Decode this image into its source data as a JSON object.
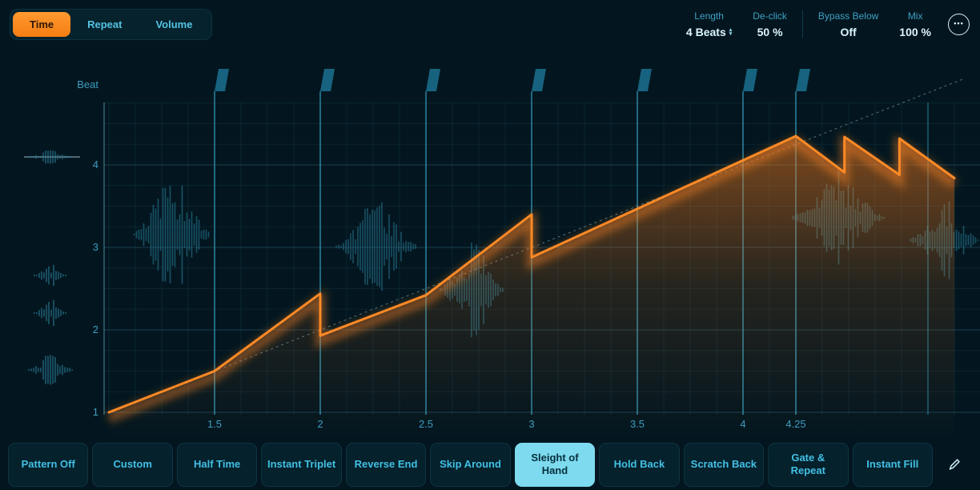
{
  "tabs": {
    "items": [
      {
        "label": "Time",
        "selected": true
      },
      {
        "label": "Repeat",
        "selected": false
      },
      {
        "label": "Volume",
        "selected": false
      }
    ]
  },
  "header": {
    "params": [
      {
        "id": "length",
        "label": "Length",
        "value": "4 Beats",
        "stepper": true,
        "divider_after": false
      },
      {
        "id": "de-click",
        "label": "De-click",
        "value": "50 %",
        "stepper": false,
        "divider_after": true
      },
      {
        "id": "bypass-below",
        "label": "Bypass Below",
        "value": "Off",
        "stepper": false,
        "divider_after": false
      },
      {
        "id": "mix",
        "label": "Mix",
        "value": "100 %",
        "stepper": false,
        "divider_after": false
      }
    ],
    "more_icon": "•••"
  },
  "chart_data": {
    "type": "line",
    "title": "",
    "xlabel": "",
    "ylabel": "Beat",
    "xlim": [
      1,
      5.12
    ],
    "ylim": [
      1,
      4.78
    ],
    "grid": true,
    "x_ticks": [
      {
        "v": 1.5,
        "label": "1.5"
      },
      {
        "v": 2,
        "label": "2"
      },
      {
        "v": 2.5,
        "label": "2.5"
      },
      {
        "v": 3,
        "label": "3"
      },
      {
        "v": 3.5,
        "label": "3.5"
      },
      {
        "v": 4,
        "label": "4"
      },
      {
        "v": 4.25,
        "label": "4.25"
      }
    ],
    "y_ticks": [
      {
        "v": 1,
        "label": "1"
      },
      {
        "v": 2,
        "label": "2"
      },
      {
        "v": 3,
        "label": "3"
      },
      {
        "v": 4,
        "label": "4"
      }
    ],
    "slice_markers": [
      1.5,
      2,
      2.5,
      3,
      3.5,
      4,
      4.25
    ],
    "end_marker": 4.875,
    "identity_line": {
      "x": [
        1,
        5.05
      ],
      "y": [
        1,
        5.05
      ],
      "style": "dashed"
    },
    "series": [
      {
        "name": "time-curve",
        "color": "#ff8a26",
        "points": [
          [
            1,
            1
          ],
          [
            1.5,
            1.5
          ],
          [
            2,
            2.44
          ],
          [
            2,
            1.93
          ],
          [
            2.5,
            2.42
          ],
          [
            3,
            3.4
          ],
          [
            3,
            2.88
          ],
          [
            4.25,
            4.35
          ],
          [
            4.48,
            3.91
          ],
          [
            4.48,
            4.34
          ],
          [
            4.74,
            3.88
          ],
          [
            4.74,
            4.32
          ],
          [
            5,
            3.84
          ]
        ]
      }
    ]
  },
  "presets": {
    "items": [
      "Pattern Off",
      "Custom",
      "Half Time",
      "Instant Triplet",
      "Reverse End",
      "Skip Around",
      "Sleight of Hand",
      "Hold Back",
      "Scratch Back",
      "Gate & Repeat",
      "Instant Fill"
    ],
    "selected_index": 6
  }
}
